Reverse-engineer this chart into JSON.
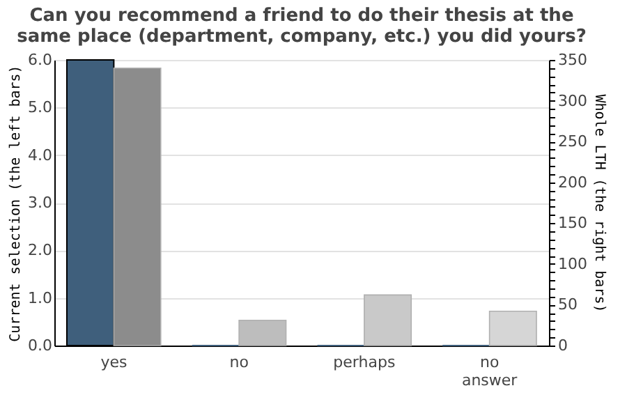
{
  "chart_data": {
    "type": "bar",
    "title": "Can you recommend a friend to do their thesis at the same place (department, company, etc.) you did yours?",
    "ylabel": "Current selection (the left bars)",
    "y2label": "Whole LTH (the right bars)",
    "categories": [
      "yes",
      "no",
      "perhaps",
      "no answer"
    ],
    "series": [
      {
        "color": "#3f5f7c",
        "values": [
          6.0,
          0,
          0,
          0
        ]
      },
      {
        "axis": "y2",
        "colors": [
          "#8c8c8c",
          "#bdbdbd",
          "#c9c9c9",
          "#d6d6d6"
        ],
        "values": [
          340,
          31,
          62,
          42
        ]
      }
    ],
    "ylim": [
      0,
      6
    ],
    "yticks": [
      {
        "value": 0,
        "label": "0.0"
      },
      {
        "value": 1,
        "label": "1.0"
      },
      {
        "value": 2,
        "label": "2.0"
      },
      {
        "value": 3,
        "label": "3.0"
      },
      {
        "value": 4,
        "label": "4.0"
      },
      {
        "value": 5,
        "label": "5.0"
      },
      {
        "value": 6,
        "label": "6.0"
      }
    ],
    "y2lim": [
      0,
      350
    ],
    "y2ticks": [
      0,
      {
        "value": 10,
        "label": null
      },
      {
        "value": 20,
        "label": null
      },
      {
        "value": 30,
        "label": null
      },
      {
        "value": 40,
        "label": null
      },
      50,
      {
        "value": 60,
        "label": null
      },
      {
        "value": 70,
        "label": null
      },
      {
        "value": 80,
        "label": null
      },
      {
        "value": 90,
        "label": null
      },
      100,
      {
        "value": 110,
        "label": null
      },
      {
        "value": 120,
        "label": null
      },
      {
        "value": 130,
        "label": null
      },
      {
        "value": 140,
        "label": null
      },
      150,
      {
        "value": 160,
        "label": null
      },
      {
        "value": 170,
        "label": null
      },
      {
        "value": 180,
        "label": null
      },
      {
        "value": 190,
        "label": null
      },
      200,
      {
        "value": 210,
        "label": null
      },
      {
        "value": 220,
        "label": null
      },
      {
        "value": 230,
        "label": null
      },
      {
        "value": 240,
        "label": null
      },
      250,
      {
        "value": 260,
        "label": null
      },
      {
        "value": 270,
        "label": null
      },
      {
        "value": 280,
        "label": null
      },
      {
        "value": 290,
        "label": null
      },
      300,
      {
        "value": 310,
        "label": null
      },
      {
        "value": 320,
        "label": null
      },
      {
        "value": 330,
        "label": null
      },
      {
        "value": 340,
        "label": null
      },
      350
    ],
    "grid": "y",
    "legend": false
  }
}
